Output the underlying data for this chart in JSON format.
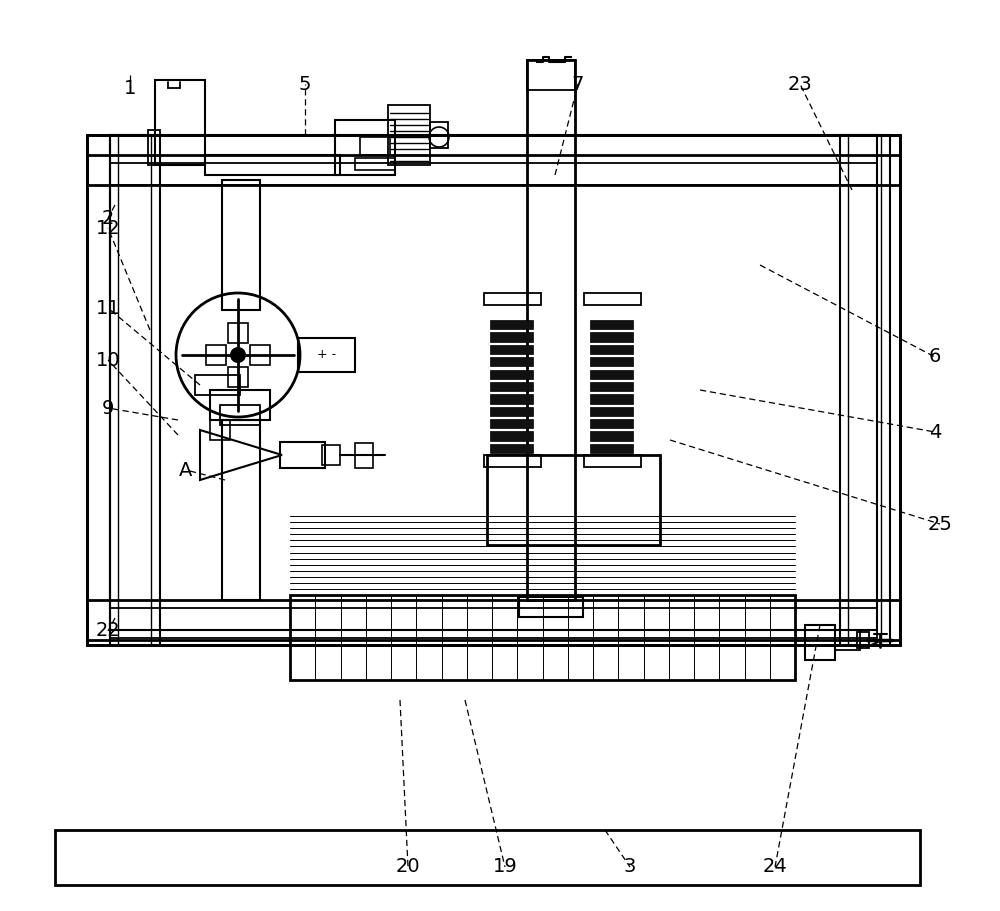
{
  "bg": "#ffffff",
  "lc": "#000000",
  "figsize": [
    10.0,
    9.11
  ],
  "dpi": 100,
  "leaders": [
    [
      130,
      75,
      130,
      88,
      "1"
    ],
    [
      115,
      205,
      108,
      218,
      "2"
    ],
    [
      605,
      830,
      630,
      867,
      "3"
    ],
    [
      700,
      390,
      935,
      432,
      "4"
    ],
    [
      305,
      135,
      305,
      84,
      "5"
    ],
    [
      760,
      265,
      935,
      357,
      "6"
    ],
    [
      555,
      175,
      578,
      84,
      "7"
    ],
    [
      178,
      420,
      108,
      408,
      "9"
    ],
    [
      178,
      435,
      108,
      360,
      "10"
    ],
    [
      200,
      385,
      108,
      308,
      "11"
    ],
    [
      150,
      330,
      108,
      228,
      "12"
    ],
    [
      465,
      700,
      505,
      867,
      "19"
    ],
    [
      400,
      700,
      408,
      867,
      "20"
    ],
    [
      115,
      618,
      108,
      631,
      "22"
    ],
    [
      852,
      190,
      800,
      84,
      "23"
    ],
    [
      820,
      625,
      775,
      867,
      "24"
    ],
    [
      670,
      440,
      940,
      524,
      "25"
    ],
    [
      225,
      480,
      186,
      470,
      "A"
    ]
  ]
}
